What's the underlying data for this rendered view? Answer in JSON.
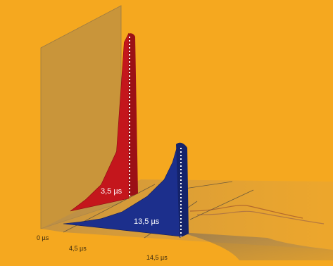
{
  "chart_data": {
    "type": "area",
    "title": "",
    "xlabel": "",
    "ylabel": "",
    "x_ticks": [
      "0 µs",
      "4,5 µs",
      "14,5 µs"
    ],
    "series": [
      {
        "name": "3,5 µs",
        "color": "#c4161c",
        "x": [
          0,
          1,
          2,
          3,
          3.5,
          3.8
        ],
        "y": [
          0,
          0.05,
          0.12,
          0.3,
          0.95,
          1.0
        ]
      },
      {
        "name": "13,5 µs",
        "color": "#1c2f8c",
        "x": [
          0,
          2,
          4.5,
          7,
          10,
          12,
          13,
          13.5,
          14
        ],
        "y": [
          0,
          0.02,
          0.05,
          0.1,
          0.2,
          0.3,
          0.4,
          0.48,
          0.5
        ]
      }
    ],
    "grid": false,
    "legend": "none"
  },
  "colors": {
    "background": "#f5a81f",
    "red_series": "#c4161c",
    "blue_series": "#1c2f8c",
    "back_plane": "#b08a4a",
    "floor": "#c79a5a"
  }
}
